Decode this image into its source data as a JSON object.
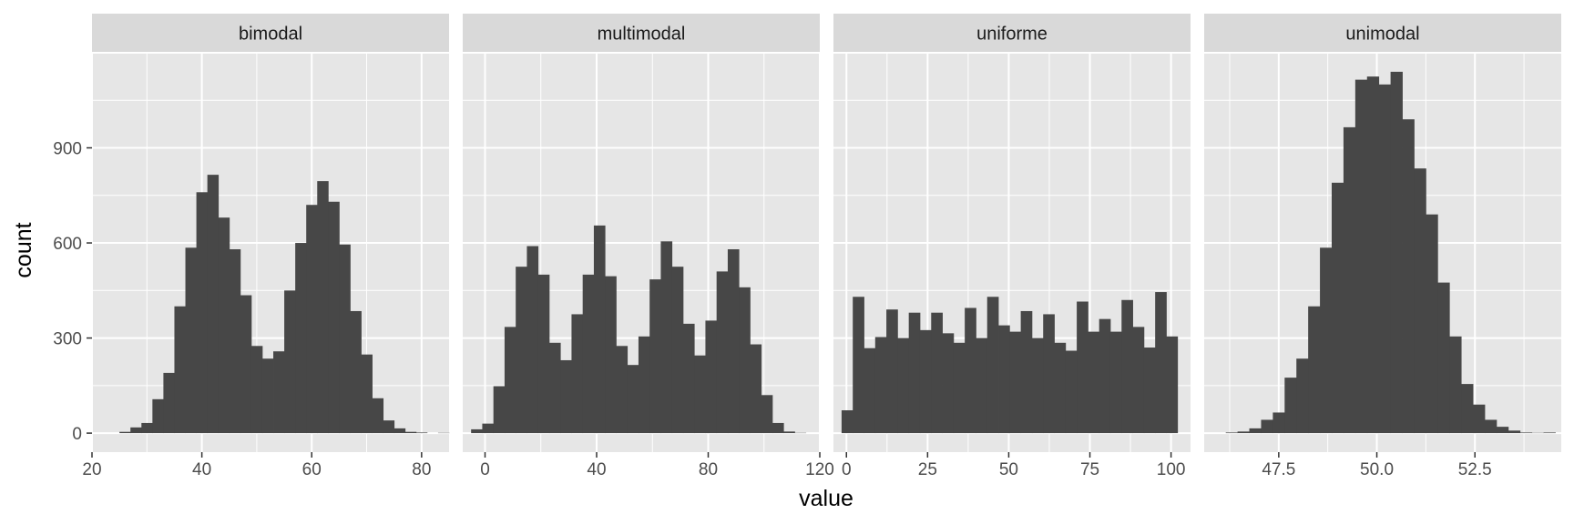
{
  "chart_data": {
    "type": "histogram-facets",
    "xlabel": "value",
    "ylabel": "count",
    "ylim": [
      -60,
      1200
    ],
    "y_ticks": [
      0,
      300,
      600,
      900
    ],
    "y_tick_labels": [
      "0",
      "300",
      "600",
      "900"
    ],
    "grid": true,
    "panel_background": "#e6e6e6",
    "strip_background": "#d9d9d9",
    "bar_color": "#474747",
    "facets": [
      {
        "label": "bimodal",
        "xlim": [
          20,
          85
        ],
        "x_ticks": [
          20,
          40,
          60,
          80
        ],
        "x_tick_labels": [
          "20",
          "40",
          "60",
          "80"
        ],
        "bins": {
          "start": 23,
          "width": 2,
          "counts": [
            0,
            4,
            18,
            32,
            107,
            190,
            400,
            585,
            760,
            815,
            680,
            580,
            435,
            275,
            235,
            258,
            450,
            600,
            720,
            795,
            730,
            595,
            385,
            248,
            110,
            40,
            15,
            4,
            2,
            0,
            1
          ]
        }
      },
      {
        "label": "multimodal",
        "xlim": [
          -8,
          120
        ],
        "x_ticks": [
          0,
          40,
          80,
          120
        ],
        "x_tick_labels": [
          "0",
          "40",
          "80",
          "120"
        ],
        "bins": {
          "start": -5,
          "width": 4,
          "counts": [
            12,
            30,
            148,
            335,
            525,
            590,
            500,
            285,
            230,
            375,
            500,
            655,
            495,
            275,
            215,
            305,
            485,
            605,
            525,
            345,
            245,
            355,
            510,
            580,
            460,
            280,
            120,
            32,
            5,
            1
          ]
        }
      },
      {
        "label": "uniforme",
        "xlim": [
          -4,
          106
        ],
        "x_ticks": [
          0,
          25,
          50,
          75,
          100
        ],
        "x_tick_labels": [
          "0",
          "25",
          "50",
          "75",
          "100"
        ],
        "bins": {
          "start": -1.5,
          "width": 3.45,
          "counts": [
            72,
            430,
            268,
            303,
            390,
            300,
            380,
            325,
            380,
            315,
            285,
            395,
            300,
            430,
            340,
            320,
            385,
            300,
            375,
            285,
            260,
            415,
            320,
            360,
            320,
            420,
            335,
            270,
            445,
            305
          ]
        }
      },
      {
        "label": "unimodal",
        "xlim": [
          45.6,
          54.7
        ],
        "x_ticks": [
          47.5,
          50.0,
          52.5
        ],
        "x_tick_labels": [
          "47.5",
          "50.0",
          "52.5"
        ],
        "bins": {
          "start": 45.85,
          "width": 0.3,
          "counts": [
            0,
            2,
            5,
            15,
            42,
            65,
            175,
            235,
            400,
            585,
            790,
            965,
            1115,
            1125,
            1100,
            1140,
            990,
            835,
            690,
            475,
            305,
            155,
            90,
            42,
            20,
            8,
            2,
            1,
            2,
            0
          ]
        }
      }
    ]
  }
}
